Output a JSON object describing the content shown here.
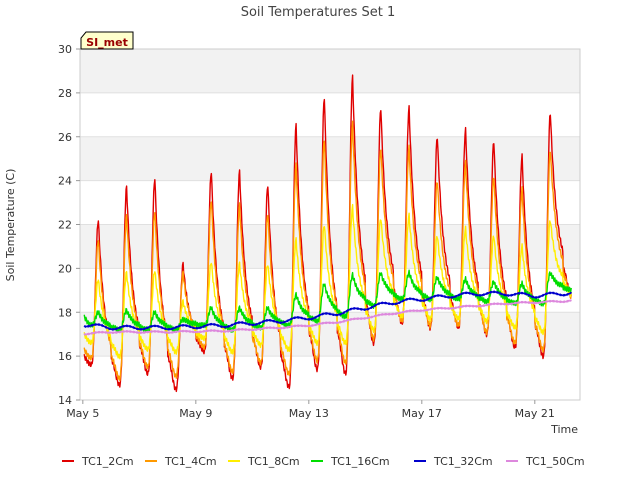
{
  "chart_data": {
    "type": "line",
    "title": "Soil Temperatures Set 1",
    "xlabel": "Time",
    "ylabel": "Soil Temperature (C)",
    "site_label": "SI_met",
    "xlim": [
      4.9,
      22.6
    ],
    "ylim": [
      14,
      30
    ],
    "yticks": [
      14,
      16,
      18,
      20,
      22,
      24,
      26,
      28,
      30
    ],
    "xticks": [
      {
        "label": "May 5",
        "day": 5
      },
      {
        "label": "May 9",
        "day": 9
      },
      {
        "label": "May 13",
        "day": 13
      },
      {
        "label": "May 17",
        "day": 17
      },
      {
        "label": "May 21",
        "day": 21
      }
    ],
    "grid": true,
    "legend_position": "bottom",
    "x_units": "day of May (fractional)",
    "days": [
      5,
      6,
      7,
      8,
      9,
      10,
      11,
      12,
      13,
      14,
      15,
      16,
      17,
      18,
      19,
      20,
      21,
      22
    ],
    "day_peak_time": 0.55,
    "series": [
      {
        "name": "TC1_2Cm",
        "color": "#e00000",
        "peaks": [
          22.2,
          23.7,
          24.1,
          20.2,
          24.4,
          24.4,
          23.8,
          26.5,
          27.8,
          28.7,
          27.3,
          27.3,
          26.0,
          26.3,
          25.8,
          25.1,
          27.1,
          20.0
        ],
        "troughs": [
          15.6,
          14.7,
          15.2,
          14.5,
          16.2,
          15.0,
          15.5,
          14.6,
          15.4,
          15.2,
          16.6,
          17.5,
          17.3,
          17.3,
          17.0,
          16.4,
          16.0,
          18.7
        ]
      },
      {
        "name": "TC1_4Cm",
        "color": "#ff9900",
        "peaks": [
          21.3,
          22.4,
          22.6,
          19.8,
          23.1,
          22.9,
          22.5,
          24.7,
          25.9,
          26.6,
          25.5,
          25.5,
          24.0,
          24.8,
          24.2,
          23.6,
          25.4,
          19.5
        ],
        "troughs": [
          15.9,
          15.0,
          15.5,
          15.1,
          16.4,
          15.3,
          15.7,
          15.2,
          15.8,
          15.7,
          16.8,
          17.6,
          17.4,
          17.4,
          17.1,
          16.6,
          16.3,
          18.7
        ]
      },
      {
        "name": "TC1_8Cm",
        "color": "#ffee00",
        "peaks": [
          19.5,
          19.8,
          19.9,
          18.5,
          20.3,
          20.2,
          20.2,
          21.3,
          22.0,
          22.8,
          22.3,
          22.4,
          21.5,
          21.8,
          21.5,
          21.0,
          22.2,
          19.2
        ],
        "troughs": [
          16.6,
          16.0,
          16.3,
          16.2,
          16.8,
          16.2,
          16.5,
          16.3,
          16.6,
          16.6,
          17.2,
          17.8,
          17.7,
          17.7,
          17.6,
          17.3,
          17.1,
          18.8
        ]
      },
      {
        "name": "TC1_16Cm",
        "color": "#00dd00",
        "peaks": [
          18.0,
          18.1,
          18.0,
          17.7,
          18.2,
          18.2,
          18.2,
          18.8,
          19.3,
          19.7,
          19.8,
          19.8,
          19.6,
          19.5,
          19.4,
          19.3,
          19.8,
          19.5
        ],
        "troughs": [
          17.4,
          17.2,
          17.2,
          17.2,
          17.4,
          17.2,
          17.3,
          17.4,
          17.6,
          17.8,
          18.3,
          18.6,
          18.6,
          18.6,
          18.5,
          18.4,
          18.4,
          19.0
        ]
      },
      {
        "name": "TC1_32Cm",
        "color": "#0000cc",
        "trend": [
          [
            4.9,
            17.45
          ],
          [
            6.0,
            17.3
          ],
          [
            8.0,
            17.3
          ],
          [
            10.0,
            17.4
          ],
          [
            12.0,
            17.6
          ],
          [
            13.0,
            17.75
          ],
          [
            14.0,
            17.95
          ],
          [
            15.0,
            18.2
          ],
          [
            16.0,
            18.45
          ],
          [
            17.0,
            18.6
          ],
          [
            18.0,
            18.75
          ],
          [
            19.0,
            18.85
          ],
          [
            20.0,
            18.85
          ],
          [
            21.0,
            18.75
          ],
          [
            22.0,
            18.85
          ],
          [
            22.3,
            18.9
          ]
        ],
        "amp": 0.08
      },
      {
        "name": "TC1_50Cm",
        "color": "#dd88dd",
        "trend": [
          [
            4.9,
            17.0
          ],
          [
            6.0,
            17.1
          ],
          [
            8.0,
            17.1
          ],
          [
            10.0,
            17.15
          ],
          [
            12.0,
            17.3
          ],
          [
            13.0,
            17.4
          ],
          [
            14.0,
            17.55
          ],
          [
            15.0,
            17.75
          ],
          [
            16.0,
            17.95
          ],
          [
            17.0,
            18.1
          ],
          [
            18.0,
            18.2
          ],
          [
            19.0,
            18.3
          ],
          [
            20.0,
            18.4
          ],
          [
            21.0,
            18.45
          ],
          [
            22.0,
            18.5
          ],
          [
            22.3,
            18.55
          ]
        ],
        "amp": 0.03
      }
    ]
  }
}
